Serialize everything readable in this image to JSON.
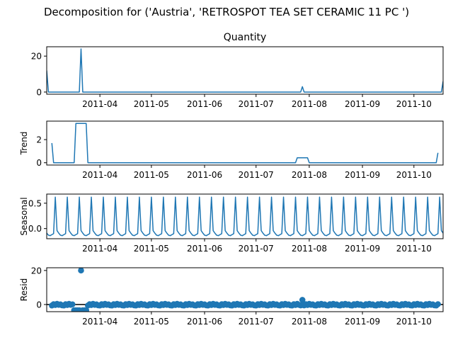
{
  "chart_data": {
    "type": "line",
    "title": "Decomposition for ('Austria', 'RETROSPOT TEA SET CERAMIC 11 PC ')",
    "color": "#1f77b4",
    "x_date_range": [
      "2011-03-01",
      "2011-10-18"
    ],
    "x_ticks": [
      "2011-04",
      "2011-05",
      "2011-06",
      "2011-07",
      "2011-08",
      "2011-09",
      "2011-10"
    ],
    "panels": [
      {
        "key": "observed",
        "title": "Quantity",
        "ylabel": "",
        "ylim": [
          -1.2,
          25.2
        ],
        "yticks": [
          0,
          20
        ],
        "type": "line",
        "points": [
          {
            "x": "2011-03-01",
            "y": 12
          },
          {
            "x": "2011-03-02",
            "y": 0
          },
          {
            "x": "2011-03-20",
            "y": 0
          },
          {
            "x": "2011-03-21",
            "y": 24
          },
          {
            "x": "2011-03-22",
            "y": 0
          },
          {
            "x": "2011-07-27",
            "y": 0
          },
          {
            "x": "2011-07-28",
            "y": 3
          },
          {
            "x": "2011-07-29",
            "y": 0
          },
          {
            "x": "2011-10-17",
            "y": 0
          },
          {
            "x": "2011-10-18",
            "y": 6
          }
        ]
      },
      {
        "key": "trend",
        "title": "",
        "ylabel": "Trend",
        "ylim": [
          -0.2,
          3.6
        ],
        "yticks": [
          0,
          2
        ],
        "type": "line",
        "points": [
          {
            "x": "2011-03-04",
            "y": 1.7
          },
          {
            "x": "2011-03-05",
            "y": 0
          },
          {
            "x": "2011-03-17",
            "y": 0
          },
          {
            "x": "2011-03-18",
            "y": 3.4
          },
          {
            "x": "2011-03-24",
            "y": 3.4
          },
          {
            "x": "2011-03-25",
            "y": 0
          },
          {
            "x": "2011-07-24",
            "y": 0
          },
          {
            "x": "2011-07-25",
            "y": 0.43
          },
          {
            "x": "2011-07-31",
            "y": 0.43
          },
          {
            "x": "2011-08-01",
            "y": 0
          },
          {
            "x": "2011-10-14",
            "y": 0
          },
          {
            "x": "2011-10-15",
            "y": 0.86
          }
        ]
      },
      {
        "key": "seasonal",
        "title": "",
        "ylabel": "Seasonal",
        "ylim": [
          -0.2,
          0.68
        ],
        "yticks": [
          0.0,
          0.5
        ],
        "ytick_labels": [
          "0.0",
          "0.5"
        ],
        "type": "seasonal",
        "period_days": 7,
        "pattern": [
          -0.09,
          -0.13,
          -0.14,
          -0.12,
          -0.1,
          0.62,
          -0.04
        ],
        "first_peak": "2011-03-06",
        "end_value": -0.1
      },
      {
        "key": "resid",
        "title": "",
        "ylabel": "Resid",
        "ylim": [
          -4.2,
          21.6
        ],
        "yticks": [
          0,
          20
        ],
        "type": "scatter",
        "baseline": 0,
        "points_sparse": [
          {
            "x": "2011-03-21",
            "y": 20
          },
          {
            "x": "2011-03-17",
            "y": -3.4
          },
          {
            "x": "2011-03-18",
            "y": -3.4
          },
          {
            "x": "2011-03-19",
            "y": -3.4
          },
          {
            "x": "2011-03-20",
            "y": -3.4
          },
          {
            "x": "2011-03-22",
            "y": -3.4
          },
          {
            "x": "2011-03-23",
            "y": -3.4
          },
          {
            "x": "2011-03-24",
            "y": -3.4
          },
          {
            "x": "2011-07-28",
            "y": 2.7
          },
          {
            "x": "2011-07-27",
            "y": -0.5
          },
          {
            "x": "2011-07-29",
            "y": -0.5
          }
        ],
        "dense_range": [
          "2011-03-04",
          "2011-10-15"
        ]
      }
    ]
  }
}
